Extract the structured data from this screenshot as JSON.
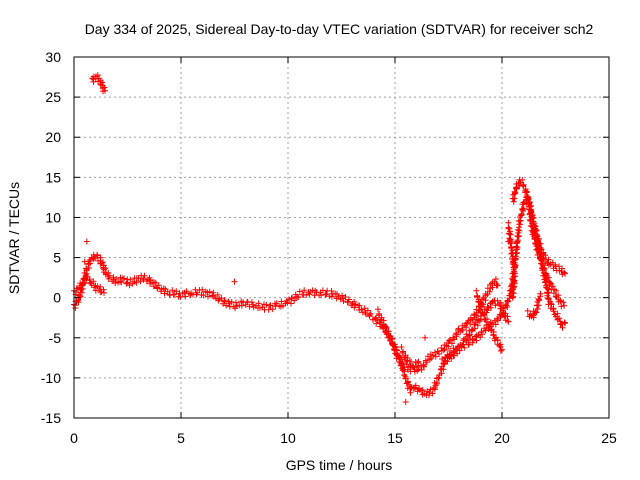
{
  "chart_data": {
    "type": "scatter",
    "title": "Day 334 of 2025, Sidereal Day-to-day VTEC variation (SDTVAR) for receiver sch2",
    "xlabel": "GPS time / hours",
    "ylabel": "SDTVAR / TECUs",
    "xlim": [
      0,
      25
    ],
    "ylim": [
      -15,
      30
    ],
    "xticks": [
      0,
      5,
      10,
      15,
      20,
      25
    ],
    "yticks": [
      -15,
      -10,
      -5,
      0,
      5,
      10,
      15,
      20,
      25,
      30
    ],
    "grid": true,
    "marker": "+",
    "series_color": "#ff0000",
    "series": [
      {
        "name": "sch2",
        "tracks": [
          [
            [
              0.0,
              -1.2
            ],
            [
              0.15,
              -0.6
            ],
            [
              0.3,
              0.5
            ],
            [
              0.45,
              2.0
            ],
            [
              0.6,
              3.5
            ],
            [
              0.75,
              4.5
            ],
            [
              0.9,
              5.0
            ],
            [
              1.05,
              5.2
            ],
            [
              1.2,
              4.8
            ],
            [
              1.35,
              4.0
            ],
            [
              1.5,
              3.0
            ],
            [
              1.7,
              2.5
            ],
            [
              2.0,
              2.0
            ],
            [
              2.3,
              2.3
            ],
            [
              2.6,
              1.8
            ],
            [
              2.9,
              2.2
            ],
            [
              3.2,
              2.5
            ],
            [
              3.5,
              2.2
            ],
            [
              3.8,
              1.5
            ],
            [
              4.1,
              1.0
            ],
            [
              4.5,
              0.6
            ],
            [
              5.0,
              0.4
            ],
            [
              5.5,
              0.6
            ],
            [
              6.0,
              0.7
            ],
            [
              6.5,
              0.3
            ],
            [
              7.0,
              -0.5
            ],
            [
              7.5,
              -1.0
            ],
            [
              8.0,
              -0.6
            ],
            [
              8.5,
              -1.0
            ],
            [
              9.0,
              -1.2
            ],
            [
              9.5,
              -1.0
            ],
            [
              10.0,
              -0.6
            ],
            [
              10.5,
              0.4
            ],
            [
              11.0,
              0.7
            ],
            [
              11.5,
              0.6
            ],
            [
              12.0,
              0.5
            ],
            [
              12.5,
              0.0
            ],
            [
              13.0,
              -0.7
            ],
            [
              13.5,
              -1.5
            ],
            [
              14.0,
              -2.5
            ],
            [
              14.5,
              -3.8
            ],
            [
              14.9,
              -5.5
            ],
            [
              15.2,
              -7.5
            ],
            [
              15.5,
              -10.0
            ],
            [
              15.7,
              -11.5
            ],
            [
              15.9,
              -11.0
            ],
            [
              16.2,
              -11.7
            ],
            [
              16.5,
              -12.0
            ],
            [
              16.8,
              -11.5
            ],
            [
              17.1,
              -9.5
            ],
            [
              17.4,
              -7.5
            ],
            [
              17.8,
              -6.5
            ],
            [
              18.2,
              -6.0
            ],
            [
              18.6,
              -5.5
            ],
            [
              19.0,
              -4.5
            ],
            [
              19.4,
              -3.5
            ],
            [
              19.7,
              -3.0
            ],
            [
              20.0,
              -2.0
            ],
            [
              20.2,
              -1.0
            ],
            [
              20.4,
              0.5
            ],
            [
              20.6,
              4.0
            ],
            [
              20.8,
              9.0
            ],
            [
              21.0,
              11.5
            ],
            [
              21.2,
              12.5
            ],
            [
              21.4,
              10.0
            ],
            [
              21.6,
              8.0
            ],
            [
              21.8,
              5.0
            ],
            [
              22.0,
              2.5
            ],
            [
              22.2,
              -0.5
            ],
            [
              22.5,
              -2.0
            ],
            [
              22.8,
              -3.5
            ],
            [
              22.95,
              -3.2
            ]
          ],
          [
            [
              0.0,
              0.5
            ],
            [
              0.2,
              1.0
            ],
            [
              0.4,
              1.8
            ],
            [
              0.6,
              2.5
            ],
            [
              0.8,
              2.0
            ],
            [
              1.0,
              1.3
            ],
            [
              1.2,
              1.0
            ],
            [
              1.4,
              0.6
            ]
          ],
          [
            [
              0.85,
              27.0
            ],
            [
              0.95,
              27.4
            ],
            [
              1.05,
              27.5
            ],
            [
              1.15,
              27.3
            ],
            [
              1.25,
              26.8
            ],
            [
              1.35,
              26.2
            ],
            [
              1.45,
              25.8
            ]
          ],
          [
            [
              14.2,
              -1.8
            ],
            [
              14.5,
              -3.5
            ],
            [
              14.8,
              -5.2
            ],
            [
              15.1,
              -7.2
            ],
            [
              15.4,
              -8.5
            ],
            [
              15.7,
              -8.8
            ],
            [
              16.0,
              -9.0
            ],
            [
              16.3,
              -8.6
            ],
            [
              16.6,
              -7.5
            ],
            [
              16.9,
              -7.0
            ],
            [
              17.2,
              -6.5
            ],
            [
              17.6,
              -5.5
            ],
            [
              18.0,
              -4.2
            ],
            [
              18.4,
              -3.2
            ],
            [
              18.8,
              -2.0
            ],
            [
              19.1,
              -0.5
            ],
            [
              19.3,
              0.5
            ],
            [
              19.5,
              1.5
            ],
            [
              19.7,
              2.0
            ],
            [
              19.8,
              1.5
            ]
          ],
          [
            [
              15.3,
              -6.5
            ],
            [
              15.6,
              -8.0
            ],
            [
              15.9,
              -8.5
            ],
            [
              16.1,
              -8.0
            ]
          ],
          [
            [
              17.2,
              -8.0
            ],
            [
              17.5,
              -7.5
            ],
            [
              17.8,
              -7.0
            ],
            [
              18.2,
              -5.5
            ],
            [
              18.6,
              -4.0
            ],
            [
              19.0,
              -2.5
            ],
            [
              19.3,
              -1.5
            ],
            [
              19.6,
              -0.5
            ],
            [
              19.9,
              -0.8
            ],
            [
              20.1,
              -2.0
            ],
            [
              20.3,
              -3.0
            ]
          ],
          [
            [
              18.8,
              0.5
            ],
            [
              19.1,
              -2.0
            ],
            [
              19.4,
              -3.5
            ],
            [
              19.7,
              -5.0
            ],
            [
              20.0,
              -6.5
            ]
          ],
          [
            [
              20.5,
              12.0
            ],
            [
              20.7,
              14.0
            ],
            [
              20.9,
              14.5
            ],
            [
              21.1,
              13.5
            ],
            [
              21.3,
              11.5
            ],
            [
              21.5,
              9.0
            ],
            [
              21.7,
              7.0
            ],
            [
              21.9,
              5.5
            ],
            [
              22.1,
              4.5
            ],
            [
              22.4,
              4.0
            ],
            [
              22.7,
              3.5
            ],
            [
              22.95,
              3.0
            ]
          ],
          [
            [
              21.3,
              10.0
            ],
            [
              21.5,
              7.5
            ],
            [
              21.7,
              5.5
            ],
            [
              21.9,
              4.0
            ],
            [
              22.1,
              2.5
            ],
            [
              22.3,
              1.5
            ],
            [
              22.5,
              0.5
            ],
            [
              22.7,
              -0.5
            ],
            [
              22.9,
              -1.0
            ]
          ],
          [
            [
              20.3,
              9.0
            ],
            [
              20.4,
              7.0
            ],
            [
              20.5,
              5.0
            ],
            [
              20.6,
              3.0
            ],
            [
              20.5,
              0.0
            ]
          ],
          [
            [
              21.2,
              -2.0
            ],
            [
              21.4,
              -2.5
            ],
            [
              21.6,
              -1.5
            ],
            [
              21.8,
              0.5
            ]
          ]
        ],
        "isolated_points": [
          [
            0.6,
            7.0
          ],
          [
            0.5,
            4.5
          ],
          [
            1.4,
            3.5
          ],
          [
            16.4,
            -5.0
          ],
          [
            15.5,
            -13.0
          ],
          [
            20.3,
            7.0
          ],
          [
            20.5,
            4.2
          ],
          [
            21.5,
            -2.0
          ],
          [
            7.5,
            2.0
          ]
        ]
      }
    ]
  }
}
